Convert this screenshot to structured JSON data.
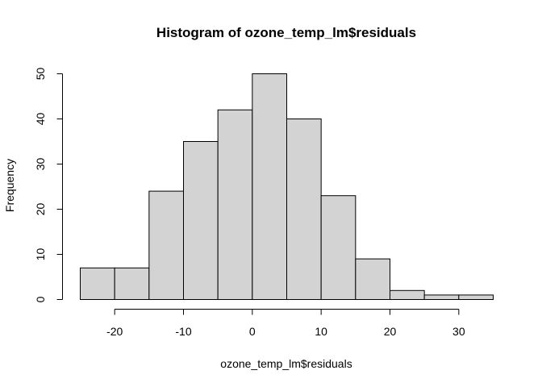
{
  "chart_data": {
    "type": "bar",
    "title": "Histogram of ozone_temp_lm$residuals",
    "xlabel": "ozone_temp_lm$residuals",
    "ylabel": "Frequency",
    "bin_edges": [
      -25,
      -20,
      -15,
      -10,
      -5,
      0,
      5,
      10,
      15,
      20,
      25,
      30,
      35
    ],
    "values": [
      7,
      7,
      24,
      35,
      42,
      50,
      40,
      23,
      9,
      2,
      1,
      1
    ],
    "xlim": [
      -25,
      35
    ],
    "ylim": [
      0,
      50
    ],
    "xticks": [
      -20,
      -10,
      0,
      10,
      20,
      30
    ],
    "yticks": [
      0,
      10,
      20,
      30,
      40,
      50
    ],
    "grid": false,
    "colors": {
      "bar_fill": "#d3d3d3",
      "bar_stroke": "#000000"
    }
  }
}
